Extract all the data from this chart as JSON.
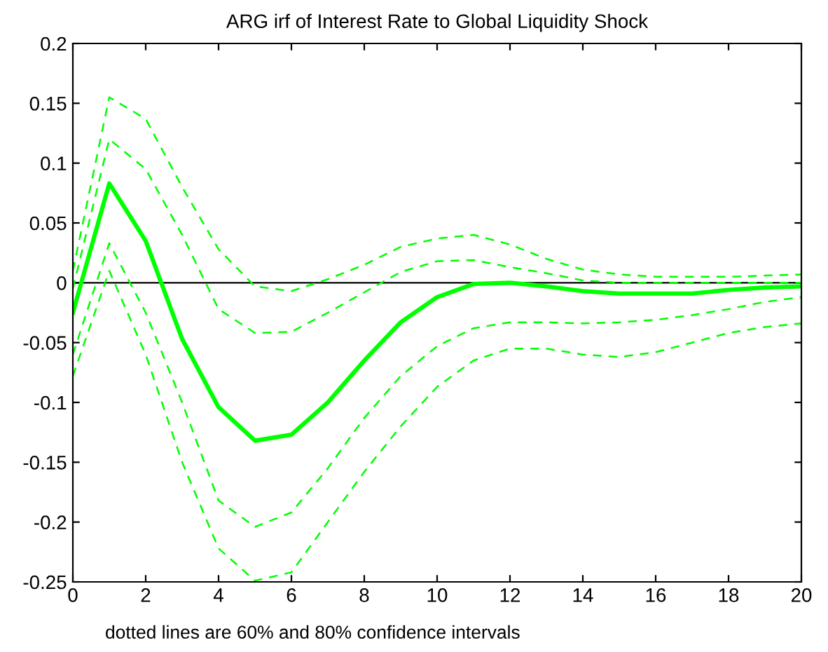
{
  "chart_data": {
    "type": "line",
    "title": "ARG irf of Interest Rate to Global Liquidity Shock",
    "x": [
      0,
      1,
      2,
      3,
      4,
      5,
      6,
      7,
      8,
      9,
      10,
      11,
      12,
      13,
      14,
      15,
      16,
      17,
      18,
      19,
      20
    ],
    "series": [
      {
        "color": "#00ff00",
        "line_style": "solid",
        "values": [
          -0.025,
          0.083,
          0.035,
          -0.047,
          -0.104,
          -0.132,
          -0.127,
          -0.1,
          -0.065,
          -0.033,
          -0.012,
          -0.001,
          0.0,
          -0.003,
          -0.007,
          -0.009,
          -0.009,
          -0.009,
          -0.006,
          -0.004,
          -0.003
        ]
      },
      {
        "color": "#00ff00",
        "line_style": "dashed",
        "values": [
          0.01,
          0.155,
          0.137,
          0.08,
          0.028,
          -0.003,
          -0.007,
          0.003,
          0.015,
          0.03,
          0.037,
          0.04,
          0.032,
          0.02,
          0.011,
          0.007,
          0.005,
          0.005,
          0.005,
          0.006,
          0.007
        ]
      },
      {
        "color": "#00ff00",
        "line_style": "dashed",
        "values": [
          -0.005,
          0.12,
          0.095,
          0.04,
          -0.022,
          -0.042,
          -0.041,
          -0.025,
          -0.008,
          0.009,
          0.018,
          0.019,
          0.013,
          0.008,
          0.002,
          0.0,
          0.0,
          0.0,
          0.0,
          0.0,
          0.0
        ]
      },
      {
        "color": "#00ff00",
        "line_style": "dashed",
        "values": [
          -0.06,
          0.033,
          -0.025,
          -0.1,
          -0.182,
          -0.204,
          -0.192,
          -0.155,
          -0.113,
          -0.078,
          -0.053,
          -0.038,
          -0.033,
          -0.033,
          -0.034,
          -0.033,
          -0.031,
          -0.027,
          -0.022,
          -0.016,
          -0.012
        ]
      },
      {
        "color": "#00ff00",
        "line_style": "dashed",
        "values": [
          -0.078,
          0.01,
          -0.06,
          -0.15,
          -0.222,
          -0.249,
          -0.242,
          -0.2,
          -0.158,
          -0.12,
          -0.087,
          -0.065,
          -0.055,
          -0.055,
          -0.06,
          -0.062,
          -0.058,
          -0.05,
          -0.042,
          -0.037,
          -0.034
        ]
      }
    ],
    "xlim": [
      0,
      20
    ],
    "xticks": [
      0,
      2,
      4,
      6,
      8,
      10,
      12,
      14,
      16,
      18,
      20
    ],
    "ylim": [
      -0.25,
      0.2
    ],
    "yticks": [
      -0.25,
      -0.2,
      -0.15,
      -0.1,
      -0.05,
      0,
      0.05,
      0.1,
      0.15,
      0.2
    ],
    "ref_lines": [
      {
        "axis": "y",
        "value": 0,
        "color": "#000000",
        "line_style": "solid"
      }
    ],
    "annotations": [
      "dotted lines are 60% and 80% confidence intervals"
    ],
    "grid": false
  }
}
